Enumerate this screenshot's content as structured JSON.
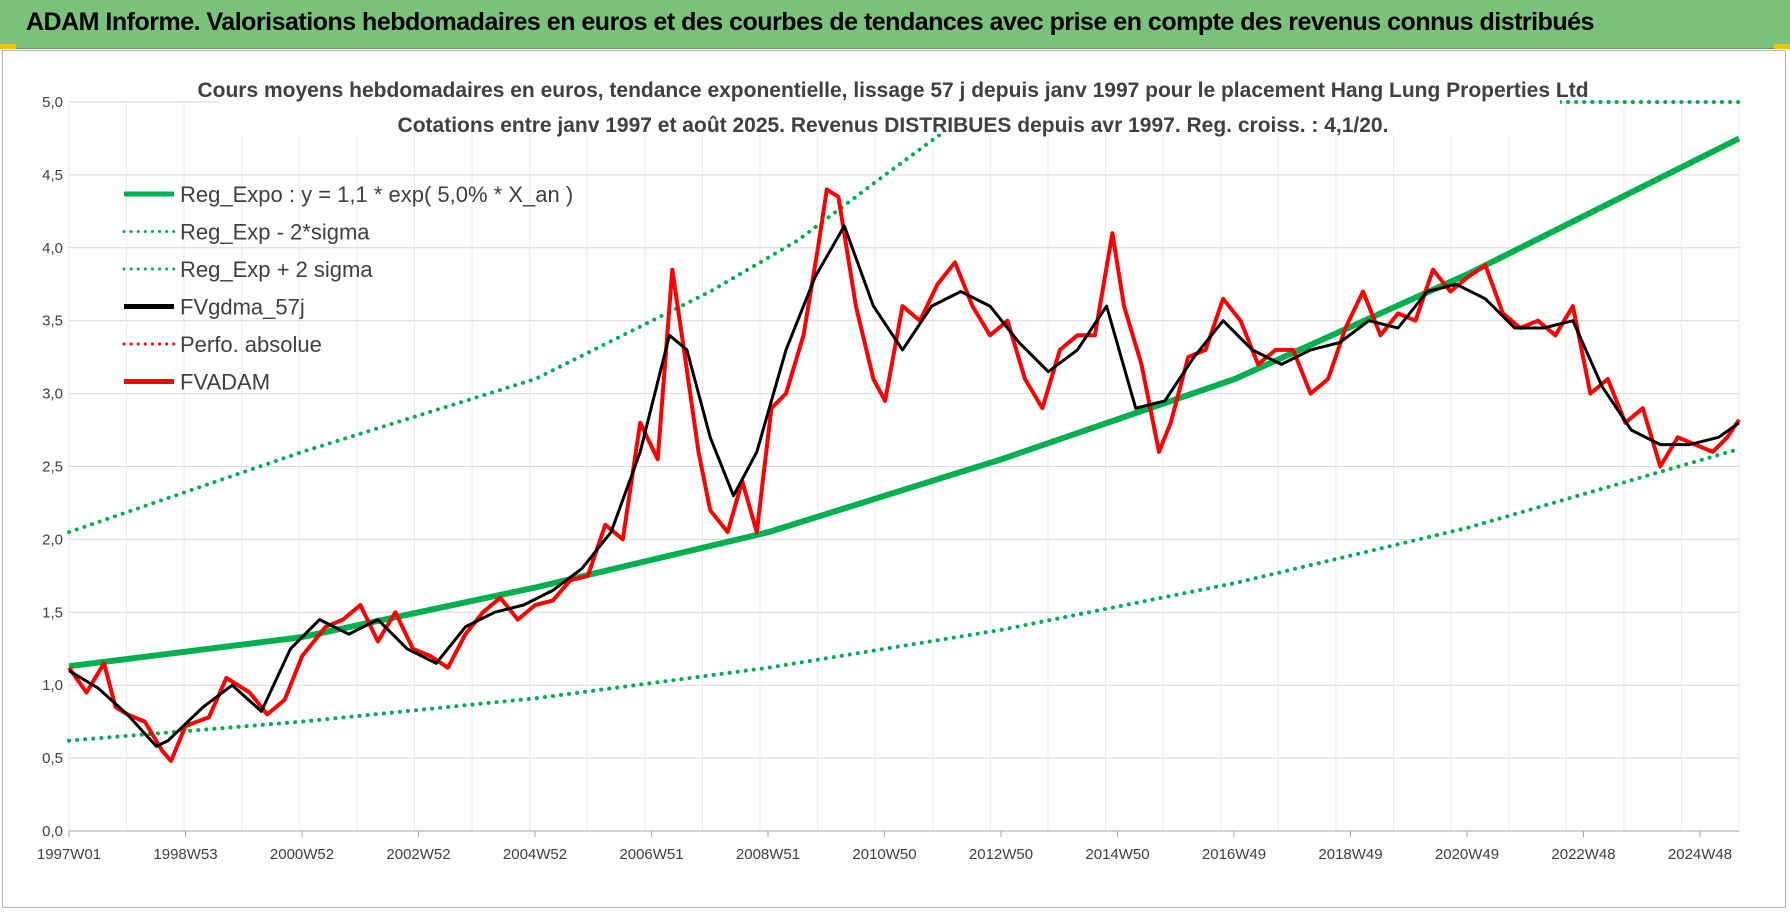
{
  "header": {
    "title": "ADAM Informe. Valorisations hebdomadaires en euros et des courbes de tendances avec prise en compte des revenus connus distribués"
  },
  "colors": {
    "banner": "#7ac27a",
    "trend": "#00b050",
    "price": "#ff0000",
    "mavg": "#000000",
    "grid": "#d9d9d9"
  },
  "chart_data": {
    "type": "line",
    "title": "Cours moyens hebdomadaires en euros, tendance exponentielle, lissage 57 j depuis janv 1997 pour le placement Hang Lung Properties Ltd",
    "subtitle": "Cotations entre janv 1997 et août 2025. Revenus DISTRIBUES depuis avr 1997. Reg. croiss. : 4,1/20.",
    "xlabel": "",
    "ylabel": "",
    "ylim": [
      0,
      5
    ],
    "y_ticks": [
      "0,0",
      "0,5",
      "1,0",
      "1,5",
      "2,0",
      "2,5",
      "3,0",
      "3,5",
      "4,0",
      "4,5",
      "5,0"
    ],
    "x_ticks": [
      "1997W01",
      "1998W53",
      "2000W52",
      "2002W52",
      "2004W52",
      "2006W51",
      "2008W51",
      "2010W50",
      "2012W50",
      "2014W50",
      "2016W49",
      "2018W49",
      "2020W49",
      "2022W48",
      "2024W48"
    ],
    "x_range": [
      1997.0,
      2025.65
    ],
    "grid": true,
    "legend_position": "top-left",
    "legend": [
      {
        "label": "Reg_Expo : y = 1,1 * exp( 5,0% *  X_an )",
        "style": "solid",
        "color": "#00b050"
      },
      {
        "label": "Reg_Exp - 2*sigma",
        "style": "dotted",
        "color": "#00b050"
      },
      {
        "label": "Reg_Exp + 2 sigma",
        "style": "dotted",
        "color": "#00b050"
      },
      {
        "label": "FVgdma_57j",
        "style": "solid",
        "color": "#000000"
      },
      {
        "label": "Perfo. absolue",
        "style": "dotted",
        "color": "#ff0000"
      },
      {
        "label": "FVADAM",
        "style": "solid",
        "color": "#ff0000"
      }
    ],
    "series": [
      {
        "name": "Reg_Expo : y = 1,1 * exp( 5,0% *  X_an )",
        "x": [
          1997.0,
          2001.0,
          2005.0,
          2009.0,
          2013.0,
          2017.0,
          2021.0,
          2025.65
        ],
        "values": [
          1.13,
          1.33,
          1.67,
          2.05,
          2.55,
          3.1,
          3.82,
          4.75
        ]
      },
      {
        "name": "Reg_Exp - 2*sigma",
        "x": [
          1997.0,
          2001.0,
          2005.0,
          2009.0,
          2013.0,
          2017.0,
          2021.0,
          2025.65
        ],
        "values": [
          0.62,
          0.75,
          0.91,
          1.12,
          1.38,
          1.7,
          2.08,
          2.62
        ]
      },
      {
        "name": "Reg_Exp + 2 sigma",
        "x": [
          1997.0,
          2001.0,
          2005.0,
          2006.5,
          2008.0,
          2009.5,
          2011.0,
          2012.7,
          2013.2,
          2022.2,
          2025.65
        ],
        "values": [
          2.05,
          2.6,
          3.1,
          3.4,
          3.7,
          4.05,
          4.5,
          5.0,
          5.0,
          5.0,
          5.0
        ]
      },
      {
        "name": "FVgdma_57j",
        "x": [
          1997.0,
          1997.5,
          1998.0,
          1998.5,
          1998.7,
          1999.3,
          1999.8,
          2000.3,
          2000.8,
          2001.3,
          2001.8,
          2002.3,
          2002.8,
          2003.3,
          2003.8,
          2004.3,
          2004.8,
          2005.3,
          2005.8,
          2006.3,
          2006.8,
          2007.3,
          2007.6,
          2008.0,
          2008.4,
          2008.8,
          2009.3,
          2009.8,
          2010.3,
          2010.8,
          2011.3,
          2011.8,
          2012.3,
          2012.8,
          2013.3,
          2013.8,
          2014.3,
          2014.8,
          2015.3,
          2015.8,
          2016.3,
          2016.8,
          2017.3,
          2017.8,
          2018.3,
          2018.8,
          2019.3,
          2019.8,
          2020.3,
          2020.8,
          2021.3,
          2021.8,
          2022.3,
          2022.8,
          2023.3,
          2023.8,
          2024.3,
          2024.8,
          2025.3,
          2025.65
        ],
        "values": [
          1.1,
          0.98,
          0.8,
          0.58,
          0.62,
          0.85,
          1.0,
          0.82,
          1.25,
          1.45,
          1.35,
          1.45,
          1.25,
          1.15,
          1.4,
          1.5,
          1.55,
          1.65,
          1.8,
          2.05,
          2.6,
          3.4,
          3.3,
          2.7,
          2.3,
          2.6,
          3.3,
          3.8,
          4.15,
          3.6,
          3.3,
          3.6,
          3.7,
          3.6,
          3.35,
          3.15,
          3.3,
          3.6,
          2.9,
          2.95,
          3.25,
          3.5,
          3.3,
          3.2,
          3.3,
          3.35,
          3.5,
          3.45,
          3.7,
          3.75,
          3.65,
          3.45,
          3.45,
          3.5,
          3.05,
          2.75,
          2.65,
          2.65,
          2.7,
          2.8
        ]
      },
      {
        "name": "FVADAM",
        "x": [
          1997.0,
          1997.3,
          1997.6,
          1997.8,
          1998.0,
          1998.3,
          1998.6,
          1998.75,
          1999.0,
          1999.4,
          1999.7,
          2000.1,
          2000.4,
          2000.7,
          2001.0,
          2001.4,
          2001.7,
          2002.0,
          2002.3,
          2002.6,
          2002.9,
          2003.2,
          2003.5,
          2003.8,
          2004.1,
          2004.4,
          2004.7,
          2005.0,
          2005.3,
          2005.6,
          2005.9,
          2006.2,
          2006.5,
          2006.8,
          2007.1,
          2007.35,
          2007.55,
          2007.8,
          2008.0,
          2008.3,
          2008.55,
          2008.8,
          2009.05,
          2009.3,
          2009.6,
          2009.85,
          2010.0,
          2010.2,
          2010.5,
          2010.8,
          2011.0,
          2011.3,
          2011.6,
          2011.9,
          2012.2,
          2012.5,
          2012.8,
          2013.1,
          2013.4,
          2013.7,
          2014.0,
          2014.3,
          2014.6,
          2014.9,
          2015.1,
          2015.4,
          2015.7,
          2015.9,
          2016.2,
          2016.5,
          2016.8,
          2017.1,
          2017.4,
          2017.7,
          2018.0,
          2018.3,
          2018.6,
          2018.9,
          2019.2,
          2019.5,
          2019.8,
          2020.1,
          2020.4,
          2020.7,
          2021.0,
          2021.3,
          2021.6,
          2021.9,
          2022.2,
          2022.5,
          2022.8,
          2023.1,
          2023.4,
          2023.7,
          2024.0,
          2024.3,
          2024.6,
          2024.9,
          2025.2,
          2025.45,
          2025.65
        ],
        "values": [
          1.12,
          0.95,
          1.15,
          0.85,
          0.8,
          0.75,
          0.55,
          0.48,
          0.72,
          0.78,
          1.05,
          0.95,
          0.8,
          0.9,
          1.2,
          1.4,
          1.45,
          1.55,
          1.3,
          1.5,
          1.25,
          1.2,
          1.12,
          1.35,
          1.5,
          1.6,
          1.45,
          1.55,
          1.58,
          1.72,
          1.75,
          2.1,
          2.0,
          2.8,
          2.55,
          3.85,
          3.3,
          2.6,
          2.2,
          2.05,
          2.4,
          2.05,
          2.9,
          3.0,
          3.4,
          4.0,
          4.4,
          4.35,
          3.6,
          3.1,
          2.95,
          3.6,
          3.5,
          3.75,
          3.9,
          3.6,
          3.4,
          3.5,
          3.1,
          2.9,
          3.3,
          3.4,
          3.4,
          4.1,
          3.6,
          3.2,
          2.6,
          2.8,
          3.25,
          3.3,
          3.65,
          3.5,
          3.2,
          3.3,
          3.3,
          3.0,
          3.1,
          3.45,
          3.7,
          3.4,
          3.55,
          3.5,
          3.85,
          3.7,
          3.8,
          3.88,
          3.55,
          3.45,
          3.5,
          3.4,
          3.6,
          3.0,
          3.1,
          2.8,
          2.9,
          2.5,
          2.7,
          2.65,
          2.6,
          2.7,
          2.82
        ]
      }
    ]
  }
}
